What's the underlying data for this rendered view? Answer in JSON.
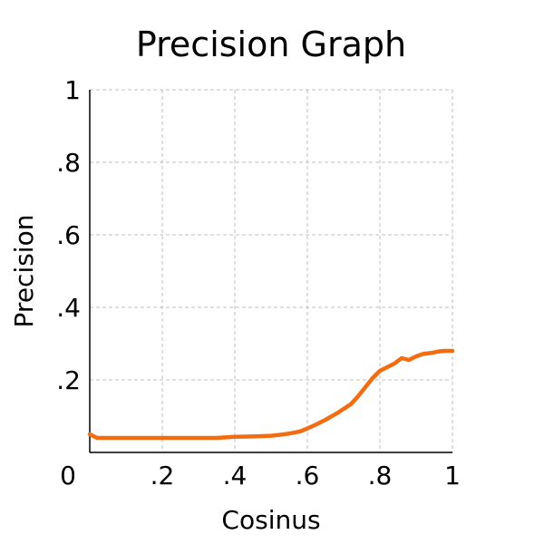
{
  "chart_data": {
    "type": "line",
    "title": "Precision Graph",
    "xlabel": "Cosinus",
    "ylabel": "Precision",
    "xlim": [
      0,
      1
    ],
    "ylim": [
      0,
      1
    ],
    "grid": true,
    "x_ticks": [
      {
        "value": 0,
        "label": "0"
      },
      {
        "value": 0.2,
        "label": ".2"
      },
      {
        "value": 0.4,
        "label": ".4"
      },
      {
        "value": 0.6,
        "label": ".6"
      },
      {
        "value": 0.8,
        "label": ".8"
      },
      {
        "value": 1,
        "label": "1"
      }
    ],
    "y_ticks": [
      {
        "value": 0.2,
        "label": ".2"
      },
      {
        "value": 0.4,
        "label": ".4"
      },
      {
        "value": 0.6,
        "label": ".6"
      },
      {
        "value": 0.8,
        "label": ".8"
      },
      {
        "value": 1,
        "label": "1"
      }
    ],
    "series": [
      {
        "color": "#f26d12",
        "x": [
          0,
          0.02,
          0.05,
          0.1,
          0.15,
          0.2,
          0.25,
          0.3,
          0.35,
          0.38,
          0.4,
          0.45,
          0.5,
          0.52,
          0.55,
          0.58,
          0.6,
          0.62,
          0.65,
          0.68,
          0.7,
          0.72,
          0.74,
          0.76,
          0.78,
          0.8,
          0.82,
          0.84,
          0.86,
          0.88,
          0.9,
          0.92,
          0.94,
          0.96,
          0.98,
          1.0
        ],
        "y": [
          0.05,
          0.04,
          0.04,
          0.04,
          0.04,
          0.04,
          0.04,
          0.04,
          0.04,
          0.042,
          0.043,
          0.044,
          0.046,
          0.048,
          0.052,
          0.058,
          0.066,
          0.075,
          0.09,
          0.107,
          0.12,
          0.133,
          0.155,
          0.18,
          0.205,
          0.225,
          0.235,
          0.245,
          0.26,
          0.255,
          0.265,
          0.272,
          0.274,
          0.278,
          0.28,
          0.28
        ]
      }
    ]
  }
}
